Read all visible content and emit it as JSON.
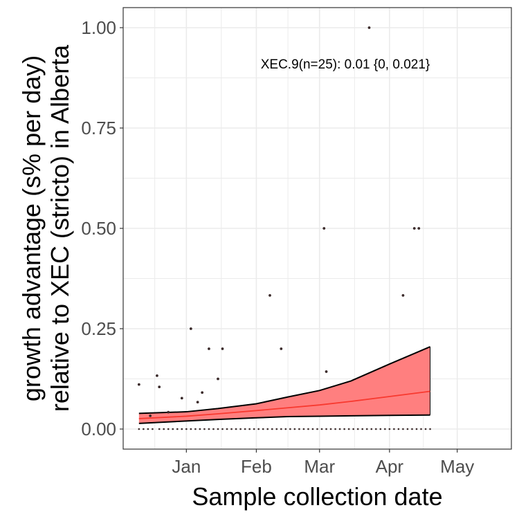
{
  "chart_data": {
    "type": "scatter",
    "xlabel": "Sample collection date",
    "ylabel_lines": [
      "growth advantage (s% per day)",
      "relative to XEC (stricto) in Alberta"
    ],
    "annotation": "XEC.9(n=25): 0.01 {0, 0.021}",
    "x_range": [
      "2024-12-04",
      "2025-05-25"
    ],
    "ylim": [
      -0.05,
      1.05
    ],
    "x_ticks": [
      {
        "date": "2025-01-01",
        "label": "Jan"
      },
      {
        "date": "2025-02-01",
        "label": "Feb"
      },
      {
        "date": "2025-03-01",
        "label": "Mar"
      },
      {
        "date": "2025-04-01",
        "label": "Apr"
      },
      {
        "date": "2025-05-01",
        "label": "May"
      }
    ],
    "y_ticks": [
      {
        "value": 0.0,
        "label": "0.00"
      },
      {
        "value": 0.25,
        "label": "0.25"
      },
      {
        "value": 0.5,
        "label": "0.50"
      },
      {
        "value": 0.75,
        "label": "0.75"
      },
      {
        "value": 1.0,
        "label": "1.00"
      }
    ],
    "grid": true,
    "colors": {
      "fit_line": "#f8392f",
      "ribbon_fill": "#ff7f7f",
      "ribbon_edge": "#000000",
      "points": "#3a2a2a",
      "panel_border": "#333333",
      "grid": "#ebebeb"
    },
    "points": [
      {
        "x": "2024-12-11",
        "y": 0.111
      },
      {
        "x": "2024-12-16",
        "y": 0.033
      },
      {
        "x": "2024-12-19",
        "y": 0.133
      },
      {
        "x": "2024-12-20",
        "y": 0.105
      },
      {
        "x": "2024-12-24",
        "y": 0.042
      },
      {
        "x": "2024-12-30",
        "y": 0.077
      },
      {
        "x": "2025-01-03",
        "y": 0.25
      },
      {
        "x": "2025-01-06",
        "y": 0.067
      },
      {
        "x": "2025-01-08",
        "y": 0.091
      },
      {
        "x": "2025-01-11",
        "y": 0.2
      },
      {
        "x": "2025-01-15",
        "y": 0.125
      },
      {
        "x": "2025-01-17",
        "y": 0.2
      },
      {
        "x": "2025-02-07",
        "y": 0.333
      },
      {
        "x": "2025-02-12",
        "y": 0.2
      },
      {
        "x": "2025-03-03",
        "y": 0.5
      },
      {
        "x": "2025-03-04",
        "y": 0.143
      },
      {
        "x": "2025-03-23",
        "y": 1.0
      },
      {
        "x": "2025-04-07",
        "y": 0.333
      },
      {
        "x": "2025-04-12",
        "y": 0.5
      },
      {
        "x": "2025-04-14",
        "y": 0.5
      }
    ],
    "zero_points": {
      "dates": [
        "2024-12-11",
        "2024-12-13",
        "2024-12-15",
        "2024-12-17",
        "2024-12-20",
        "2024-12-22",
        "2024-12-24",
        "2024-12-26",
        "2024-12-28",
        "2024-12-30",
        "2025-01-01",
        "2025-01-03",
        "2025-01-05",
        "2025-01-07",
        "2025-01-09",
        "2025-01-11",
        "2025-01-13",
        "2025-01-15",
        "2025-01-17",
        "2025-01-19",
        "2025-01-21",
        "2025-01-23",
        "2025-01-25",
        "2025-01-27",
        "2025-01-29",
        "2025-01-31",
        "2025-02-02",
        "2025-02-04",
        "2025-02-06",
        "2025-02-08",
        "2025-02-10",
        "2025-02-12",
        "2025-02-14",
        "2025-02-16",
        "2025-02-18",
        "2025-02-20",
        "2025-02-22",
        "2025-02-24",
        "2025-02-26",
        "2025-02-28",
        "2025-03-02",
        "2025-03-04",
        "2025-03-06",
        "2025-03-08",
        "2025-03-10",
        "2025-03-12",
        "2025-03-14",
        "2025-03-16",
        "2025-03-18",
        "2025-03-20",
        "2025-03-22",
        "2025-03-24",
        "2025-03-26",
        "2025-03-28",
        "2025-03-30",
        "2025-04-01",
        "2025-04-03",
        "2025-04-05",
        "2025-04-07",
        "2025-04-09",
        "2025-04-11",
        "2025-04-13",
        "2025-04-15",
        "2025-04-17",
        "2025-04-19"
      ],
      "y": 0.0
    },
    "fit": [
      {
        "x": "2024-12-11",
        "y": 0.026,
        "lo": 0.014,
        "hi": 0.039
      },
      {
        "x": "2025-01-01",
        "y": 0.032,
        "lo": 0.02,
        "hi": 0.043
      },
      {
        "x": "2025-01-15",
        "y": 0.038,
        "lo": 0.024,
        "hi": 0.051
      },
      {
        "x": "2025-02-01",
        "y": 0.046,
        "lo": 0.028,
        "hi": 0.063
      },
      {
        "x": "2025-02-15",
        "y": 0.053,
        "lo": 0.031,
        "hi": 0.08
      },
      {
        "x": "2025-03-01",
        "y": 0.06,
        "lo": 0.032,
        "hi": 0.096
      },
      {
        "x": "2025-03-15",
        "y": 0.069,
        "lo": 0.033,
        "hi": 0.12
      },
      {
        "x": "2025-04-01",
        "y": 0.081,
        "lo": 0.034,
        "hi": 0.162
      },
      {
        "x": "2025-04-19",
        "y": 0.094,
        "lo": 0.035,
        "hi": 0.205
      }
    ]
  }
}
